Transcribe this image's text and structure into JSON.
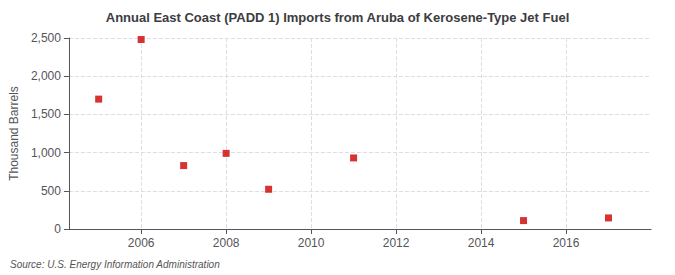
{
  "chart_data": {
    "type": "scatter",
    "title": "Annual East Coast (PADD 1) Imports from Aruba of Kerosene-Type Jet Fuel",
    "ylabel": "Thousand Barrels",
    "source": "Source: U.S. Energy Information Administration",
    "x": [
      2005,
      2006,
      2007,
      2008,
      2009,
      2011,
      2015,
      2017
    ],
    "values": [
      1700,
      2480,
      830,
      990,
      520,
      930,
      110,
      145
    ],
    "color": "#cc0000",
    "marker": "square",
    "xlim": [
      2004.3,
      2018.0
    ],
    "xticks": [
      2006,
      2008,
      2010,
      2012,
      2014,
      2016
    ],
    "ylim": [
      0,
      2500
    ],
    "yticks": [
      0,
      {
        "value": 500,
        "label": "500"
      },
      {
        "value": 1000,
        "label": "1,000"
      },
      {
        "value": 1500,
        "label": "1,500"
      },
      {
        "value": 2000,
        "label": "2,000"
      },
      {
        "value": 2500,
        "label": "2,500"
      }
    ],
    "grid": true
  }
}
